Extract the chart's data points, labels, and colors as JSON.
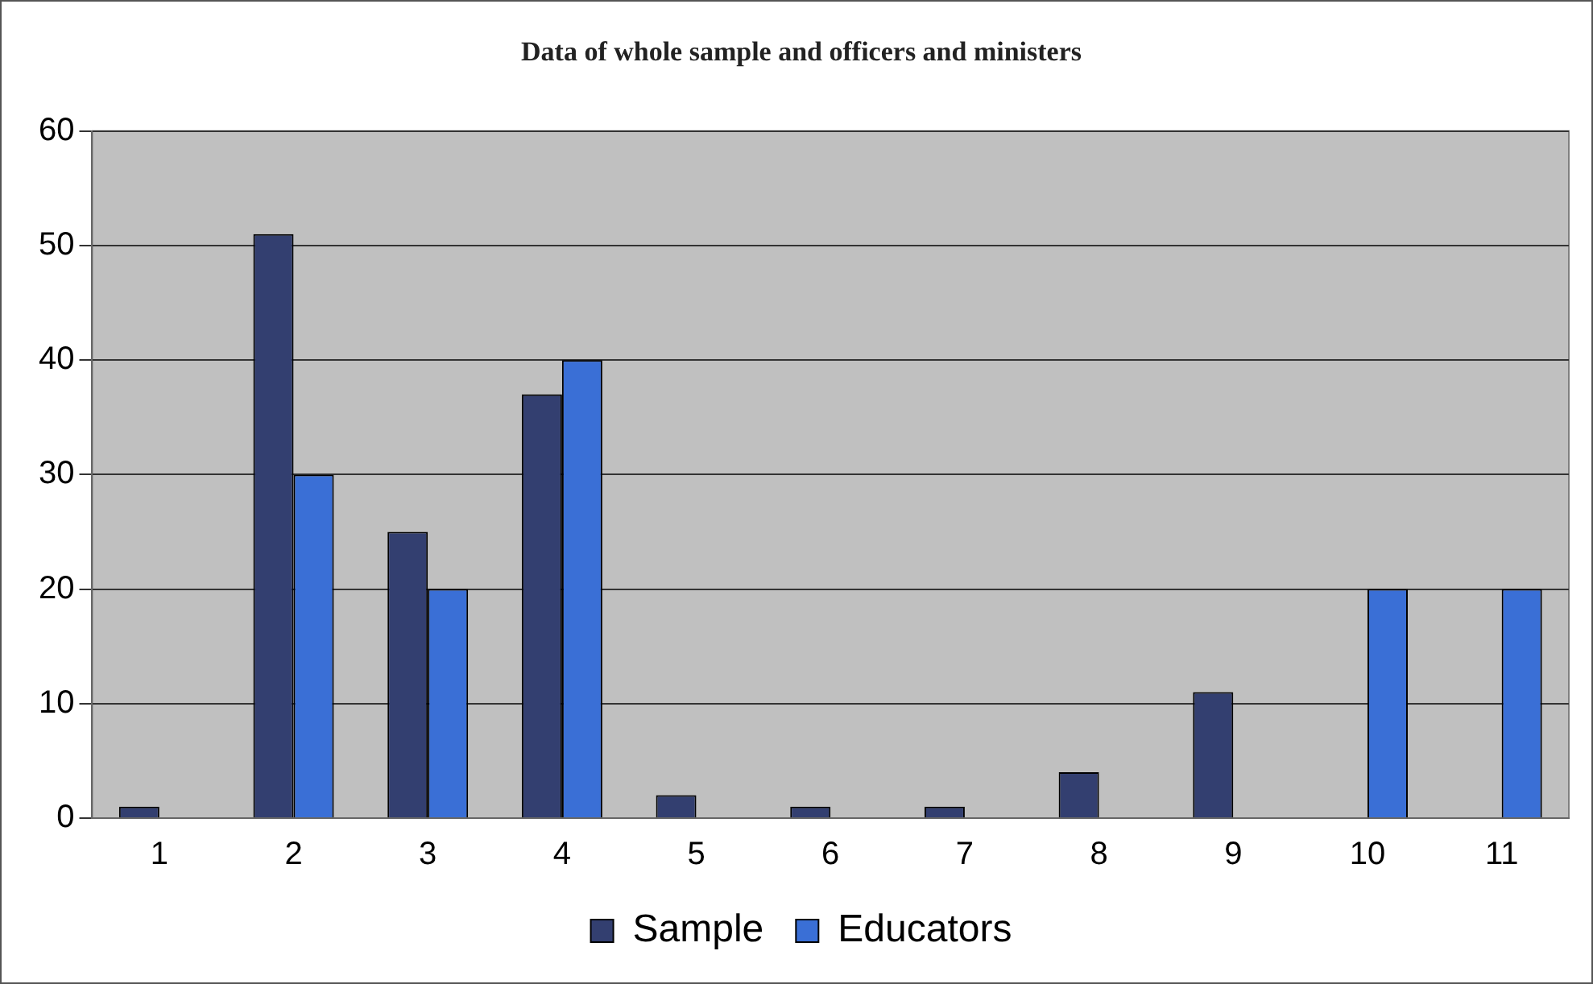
{
  "chart_data": {
    "type": "bar",
    "title": "Data of whole sample and officers and ministers",
    "categories": [
      "1",
      "2",
      "3",
      "4",
      "5",
      "6",
      "7",
      "8",
      "9",
      "10",
      "11"
    ],
    "series": [
      {
        "name": "Sample",
        "color": "#333f70",
        "values": [
          1,
          51,
          25,
          37,
          2,
          1,
          1,
          4,
          11,
          null,
          null
        ]
      },
      {
        "name": "Educators",
        "color": "#3a6fd6",
        "values": [
          null,
          30,
          20,
          40,
          null,
          null,
          null,
          null,
          null,
          20,
          20
        ]
      }
    ],
    "ylim": [
      0,
      60
    ],
    "yticks": [
      0,
      10,
      20,
      30,
      40,
      50,
      60
    ],
    "grid": "y",
    "legend": "bottom"
  }
}
